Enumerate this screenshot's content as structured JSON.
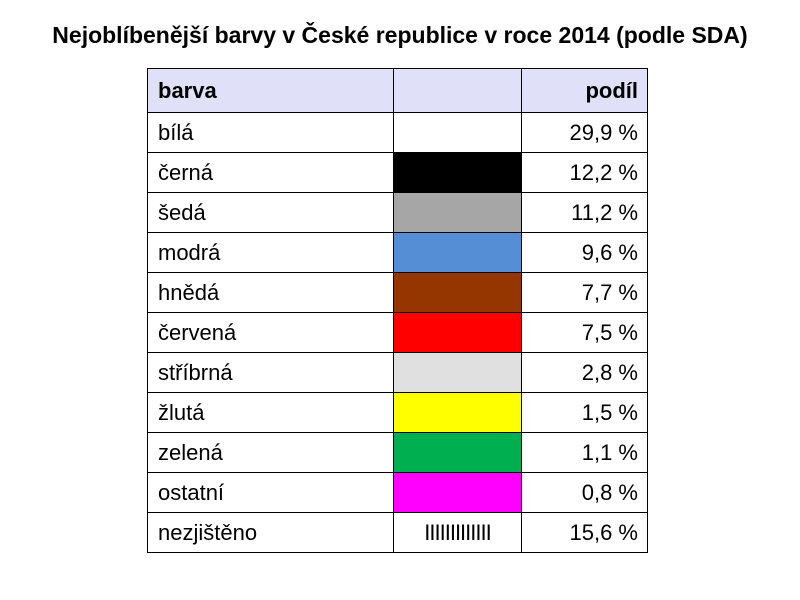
{
  "chart_data": {
    "type": "table",
    "title": "Nejoblíbenější barvy v České republice v roce 2014 (podle SDA)",
    "columns": [
      "barva",
      "",
      "podíl"
    ],
    "rows": [
      {
        "name": "bílá",
        "color": "#ffffff",
        "swatch_text": "",
        "share": "29,9 %",
        "value": 29.9
      },
      {
        "name": "černá",
        "color": "#000000",
        "swatch_text": "",
        "share": "12,2 %",
        "value": 12.2
      },
      {
        "name": "šedá",
        "color": "#a6a6a6",
        "swatch_text": "",
        "share": "11,2 %",
        "value": 11.2
      },
      {
        "name": "modrá",
        "color": "#558ed5",
        "swatch_text": "",
        "share": "9,6 %",
        "value": 9.6
      },
      {
        "name": "hnědá",
        "color": "#953600",
        "swatch_text": "",
        "share": "7,7 %",
        "value": 7.7
      },
      {
        "name": "červená",
        "color": "#ff0000",
        "swatch_text": "",
        "share": "7,5 %",
        "value": 7.5
      },
      {
        "name": "stříbrná",
        "color": "#e0e0e0",
        "swatch_text": "",
        "share": "2,8 %",
        "value": 2.8
      },
      {
        "name": "žlutá",
        "color": "#ffff00",
        "swatch_text": "",
        "share": "1,5 %",
        "value": 1.5
      },
      {
        "name": "zelená",
        "color": "#00b050",
        "swatch_text": "",
        "share": "1,1 %",
        "value": 1.1
      },
      {
        "name": "ostatní",
        "color": "#ff00ff",
        "swatch_text": "",
        "share": "0,8 %",
        "value": 0.8
      },
      {
        "name": "nezjištěno",
        "color": "#ffffff",
        "swatch_text": "IIIIIIIIIIIII",
        "share": "15,6 %",
        "value": 15.6
      }
    ]
  }
}
